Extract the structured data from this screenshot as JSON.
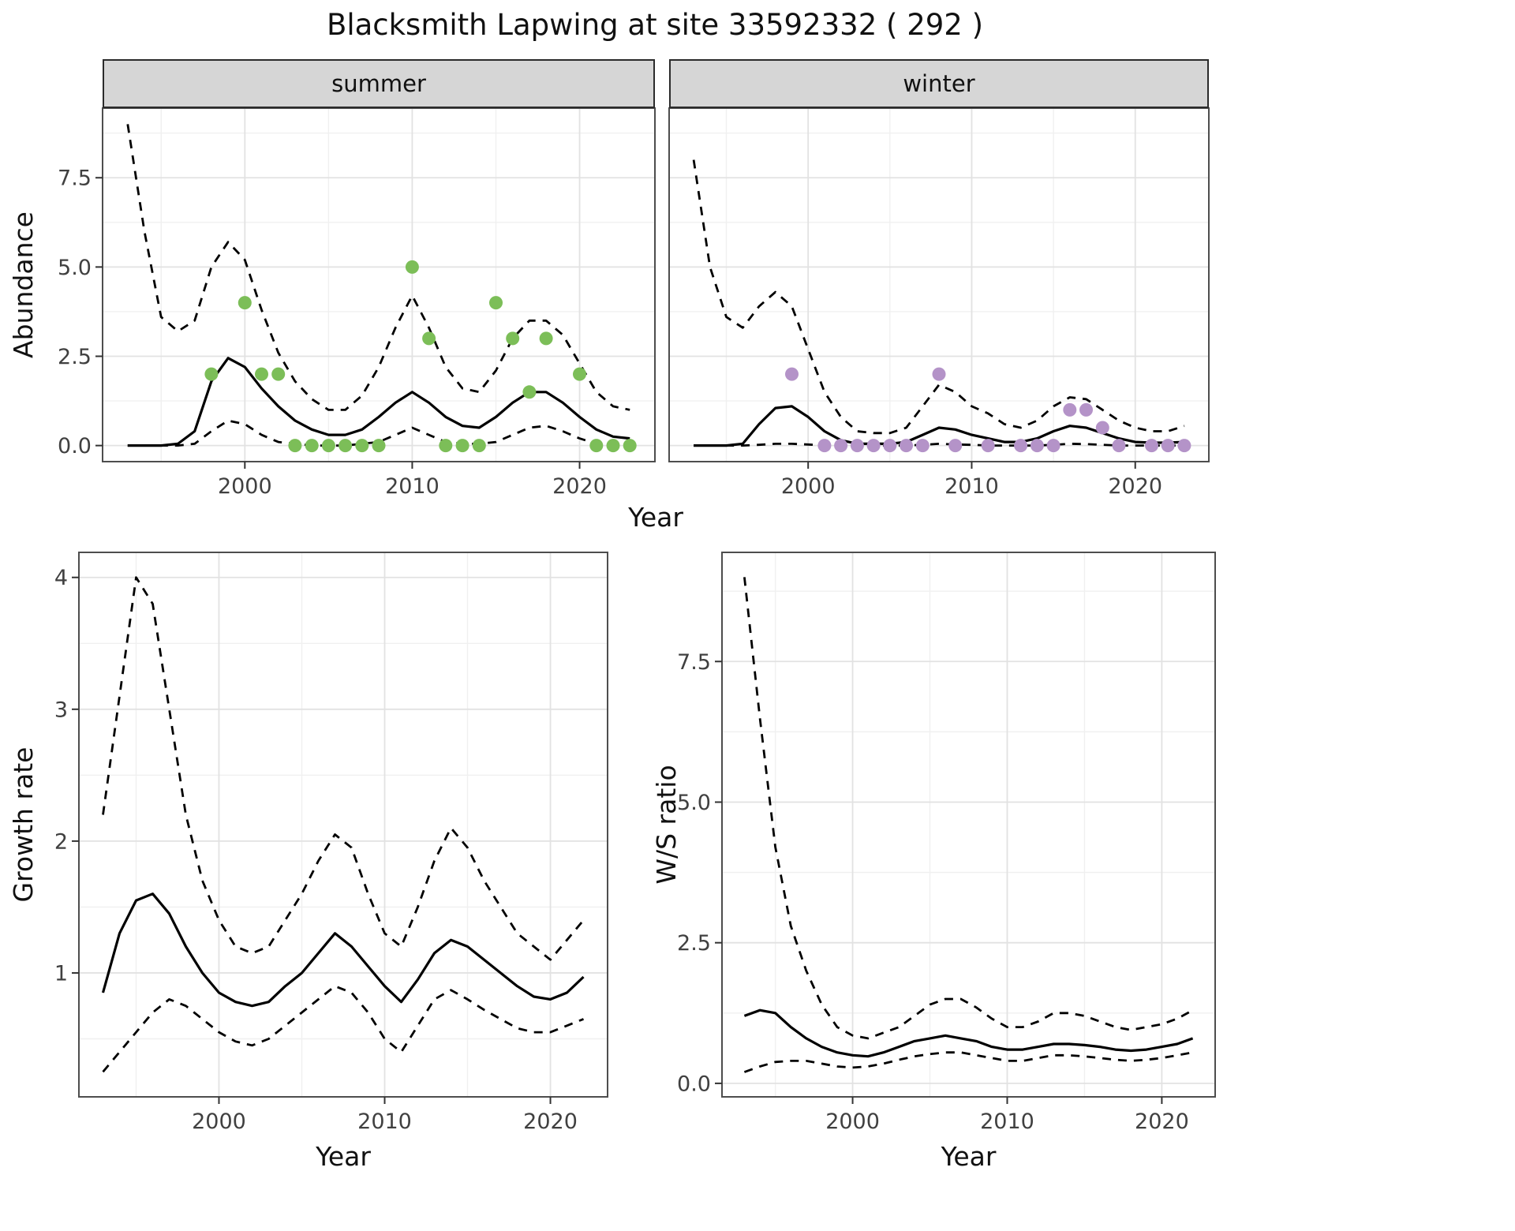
{
  "title": "Blacksmith Lapwing at site 33592332 ( 292 )",
  "colors": {
    "summer_points": "#7cbe58",
    "winter_points": "#b493c8",
    "line": "#000000",
    "grid_major": "#e2e2e2",
    "grid_minor": "#f0f0f0",
    "strip_bg": "#d6d6d6",
    "panel_border": "#4d4d4d",
    "axis_text": "#404040"
  },
  "chart_data": [
    {
      "type": "line",
      "name": "summer-abundance",
      "facet": "summer",
      "xlabel": "Year",
      "ylabel": "Abundance",
      "xlim": [
        1991.5,
        2024.5
      ],
      "ylim": [
        -0.45,
        9.45
      ],
      "xticks": [
        2000,
        2010,
        2020
      ],
      "yticks": [
        0,
        2.5,
        5,
        7.5
      ],
      "xtick_labels": [
        "2000",
        "2010",
        "2020"
      ],
      "ytick_labels": [
        "0.0",
        "2.5",
        "5.0",
        "7.5"
      ],
      "grid": true,
      "legend": "none",
      "x": [
        1993,
        1994,
        1995,
        1996,
        1997,
        1998,
        1999,
        2000,
        2001,
        2002,
        2003,
        2004,
        2005,
        2006,
        2007,
        2008,
        2009,
        2010,
        2011,
        2012,
        2013,
        2014,
        2015,
        2016,
        2017,
        2018,
        2019,
        2020,
        2021,
        2022,
        2023
      ],
      "series": [
        {
          "name": "median",
          "style": "solid",
          "values": [
            0,
            0,
            0,
            0.05,
            0.4,
            1.8,
            2.45,
            2.2,
            1.6,
            1.1,
            0.7,
            0.45,
            0.3,
            0.3,
            0.45,
            0.8,
            1.2,
            1.5,
            1.2,
            0.8,
            0.55,
            0.5,
            0.8,
            1.2,
            1.5,
            1.5,
            1.2,
            0.8,
            0.45,
            0.25,
            0.2
          ]
        },
        {
          "name": "upper-ci",
          "style": "dashed",
          "values": [
            9,
            6,
            3.6,
            3.2,
            3.5,
            5,
            5.7,
            5.2,
            3.8,
            2.6,
            1.8,
            1.3,
            1,
            1,
            1.4,
            2.2,
            3.3,
            4.2,
            3.3,
            2.2,
            1.6,
            1.5,
            2.1,
            3,
            3.5,
            3.5,
            3.1,
            2.3,
            1.5,
            1.1,
            1
          ]
        },
        {
          "name": "lower-ci",
          "style": "dashed",
          "values": [
            0,
            0,
            0,
            0,
            0.05,
            0.4,
            0.7,
            0.6,
            0.3,
            0.1,
            0.05,
            0,
            0,
            0,
            0.05,
            0.1,
            0.3,
            0.5,
            0.3,
            0.1,
            0.05,
            0.05,
            0.1,
            0.3,
            0.5,
            0.55,
            0.4,
            0.2,
            0.05,
            0,
            0
          ]
        }
      ],
      "points": {
        "name": "summer-observations",
        "color": "#7cbe58",
        "x": [
          1998,
          2000,
          2001,
          2002,
          2003,
          2004,
          2005,
          2006,
          2007,
          2008,
          2010,
          2011,
          2012,
          2013,
          2014,
          2015,
          2016,
          2017,
          2018,
          2020,
          2021,
          2022,
          2023
        ],
        "y": [
          2,
          4,
          2,
          2,
          0,
          0,
          0,
          0,
          0,
          0,
          5,
          3,
          0,
          0,
          0,
          4,
          3,
          1.5,
          3,
          2,
          0,
          0,
          0
        ]
      }
    },
    {
      "type": "line",
      "name": "winter-abundance",
      "facet": "winter",
      "xlabel": "Year",
      "ylabel": "",
      "xlim": [
        1991.5,
        2024.5
      ],
      "ylim": [
        -0.45,
        9.45
      ],
      "xticks": [
        2000,
        2010,
        2020
      ],
      "yticks": [
        0,
        2.5,
        5,
        7.5
      ],
      "xtick_labels": [
        "2000",
        "2010",
        "2020"
      ],
      "ytick_labels": [
        "0.0",
        "2.5",
        "5.0",
        "7.5"
      ],
      "grid": true,
      "legend": "none",
      "x": [
        1993,
        1994,
        1995,
        1996,
        1997,
        1998,
        1999,
        2000,
        2001,
        2002,
        2003,
        2004,
        2005,
        2006,
        2007,
        2008,
        2009,
        2010,
        2011,
        2012,
        2013,
        2014,
        2015,
        2016,
        2017,
        2018,
        2019,
        2020,
        2021,
        2022,
        2023
      ],
      "series": [
        {
          "name": "median",
          "style": "solid",
          "values": [
            0,
            0,
            0,
            0.05,
            0.6,
            1.05,
            1.1,
            0.8,
            0.4,
            0.15,
            0.05,
            0.05,
            0.05,
            0.1,
            0.3,
            0.5,
            0.45,
            0.3,
            0.2,
            0.1,
            0.1,
            0.2,
            0.4,
            0.55,
            0.5,
            0.35,
            0.2,
            0.1,
            0.08,
            0.08,
            0.1
          ]
        },
        {
          "name": "upper-ci",
          "style": "dashed",
          "values": [
            8,
            5,
            3.6,
            3.3,
            3.9,
            4.3,
            3.9,
            2.7,
            1.5,
            0.8,
            0.4,
            0.35,
            0.35,
            0.5,
            1.1,
            1.7,
            1.5,
            1.1,
            0.9,
            0.6,
            0.5,
            0.7,
            1.1,
            1.35,
            1.3,
            1,
            0.7,
            0.5,
            0.4,
            0.4,
            0.55
          ]
        },
        {
          "name": "lower-ci",
          "style": "dashed",
          "values": [
            0,
            0,
            0,
            0,
            0.02,
            0.05,
            0.05,
            0.03,
            0,
            0,
            0,
            0,
            0,
            0,
            0.02,
            0.05,
            0.03,
            0.02,
            0,
            0,
            0,
            0,
            0.02,
            0.05,
            0.04,
            0.02,
            0,
            0,
            0,
            0,
            0
          ]
        }
      ],
      "points": {
        "name": "winter-observations",
        "color": "#b493c8",
        "x": [
          1999,
          2001,
          2002,
          2003,
          2004,
          2005,
          2006,
          2007,
          2008,
          2009,
          2011,
          2013,
          2014,
          2015,
          2016,
          2017,
          2018,
          2019,
          2021,
          2022,
          2023
        ],
        "y": [
          2,
          0,
          0,
          0,
          0,
          0,
          0,
          0,
          2,
          0,
          0,
          0,
          0,
          0,
          1,
          1,
          0.5,
          0,
          0,
          0,
          0
        ]
      }
    },
    {
      "type": "line",
      "name": "growth-rate",
      "facet": "",
      "xlabel": "Year",
      "ylabel": "Growth rate",
      "xlim": [
        1991.55,
        2023.45
      ],
      "ylim": [
        0.06,
        4.19
      ],
      "xticks": [
        2000,
        2010,
        2020
      ],
      "yticks": [
        1,
        2,
        3,
        4
      ],
      "xtick_labels": [
        "2000",
        "2010",
        "2020"
      ],
      "ytick_labels": [
        "1",
        "2",
        "3",
        "4"
      ],
      "grid": true,
      "legend": "none",
      "x": [
        1993,
        1994,
        1995,
        1996,
        1997,
        1998,
        1999,
        2000,
        2001,
        2002,
        2003,
        2004,
        2005,
        2006,
        2007,
        2008,
        2009,
        2010,
        2011,
        2012,
        2013,
        2014,
        2015,
        2016,
        2017,
        2018,
        2019,
        2020,
        2021,
        2022
      ],
      "series": [
        {
          "name": "median",
          "style": "solid",
          "values": [
            0.85,
            1.3,
            1.55,
            1.6,
            1.45,
            1.2,
            1.0,
            0.85,
            0.78,
            0.75,
            0.78,
            0.9,
            1.0,
            1.15,
            1.3,
            1.2,
            1.05,
            0.9,
            0.78,
            0.95,
            1.15,
            1.25,
            1.2,
            1.1,
            1.0,
            0.9,
            0.82,
            0.8,
            0.85,
            0.97
          ]
        },
        {
          "name": "upper-ci",
          "style": "dashed",
          "values": [
            2.2,
            3.1,
            4.0,
            3.8,
            3.0,
            2.2,
            1.7,
            1.4,
            1.2,
            1.15,
            1.2,
            1.4,
            1.6,
            1.85,
            2.05,
            1.95,
            1.6,
            1.3,
            1.2,
            1.5,
            1.85,
            2.1,
            1.95,
            1.7,
            1.5,
            1.3,
            1.2,
            1.1,
            1.25,
            1.4
          ]
        },
        {
          "name": "lower-ci",
          "style": "dashed",
          "values": [
            0.25,
            0.4,
            0.55,
            0.7,
            0.8,
            0.75,
            0.65,
            0.55,
            0.48,
            0.45,
            0.5,
            0.6,
            0.7,
            0.8,
            0.9,
            0.85,
            0.7,
            0.5,
            0.4,
            0.6,
            0.8,
            0.87,
            0.8,
            0.72,
            0.65,
            0.58,
            0.55,
            0.55,
            0.6,
            0.65
          ]
        }
      ]
    },
    {
      "type": "line",
      "name": "ws-ratio",
      "facet": "",
      "xlabel": "Year",
      "ylabel": "W/S ratio",
      "xlim": [
        1991.55,
        2023.45
      ],
      "ylim": [
        -0.24,
        9.44
      ],
      "xticks": [
        2000,
        2010,
        2020
      ],
      "yticks": [
        0,
        2.5,
        5,
        7.5
      ],
      "xtick_labels": [
        "2000",
        "2010",
        "2020"
      ],
      "ytick_labels": [
        "0.0",
        "2.5",
        "5.0",
        "7.5"
      ],
      "grid": true,
      "legend": "none",
      "x": [
        1993,
        1994,
        1995,
        1996,
        1997,
        1998,
        1999,
        2000,
        2001,
        2002,
        2003,
        2004,
        2005,
        2006,
        2007,
        2008,
        2009,
        2010,
        2011,
        2012,
        2013,
        2014,
        2015,
        2016,
        2017,
        2018,
        2019,
        2020,
        2021,
        2022
      ],
      "series": [
        {
          "name": "median",
          "style": "solid",
          "values": [
            1.2,
            1.3,
            1.25,
            1.0,
            0.8,
            0.65,
            0.55,
            0.5,
            0.48,
            0.55,
            0.65,
            0.75,
            0.8,
            0.85,
            0.8,
            0.75,
            0.65,
            0.6,
            0.6,
            0.65,
            0.7,
            0.7,
            0.68,
            0.65,
            0.6,
            0.58,
            0.6,
            0.65,
            0.7,
            0.8
          ]
        },
        {
          "name": "upper-ci",
          "style": "dashed",
          "values": [
            9.0,
            6.5,
            4.2,
            2.8,
            2.0,
            1.4,
            1.0,
            0.85,
            0.8,
            0.9,
            1.0,
            1.2,
            1.4,
            1.5,
            1.5,
            1.35,
            1.15,
            1.0,
            1.0,
            1.1,
            1.25,
            1.25,
            1.2,
            1.1,
            1.0,
            0.95,
            1.0,
            1.05,
            1.15,
            1.3
          ]
        },
        {
          "name": "lower-ci",
          "style": "dashed",
          "values": [
            0.2,
            0.3,
            0.38,
            0.4,
            0.4,
            0.35,
            0.3,
            0.28,
            0.3,
            0.35,
            0.42,
            0.48,
            0.52,
            0.55,
            0.55,
            0.5,
            0.45,
            0.4,
            0.4,
            0.45,
            0.5,
            0.5,
            0.48,
            0.45,
            0.42,
            0.4,
            0.42,
            0.45,
            0.5,
            0.55
          ]
        }
      ]
    }
  ]
}
